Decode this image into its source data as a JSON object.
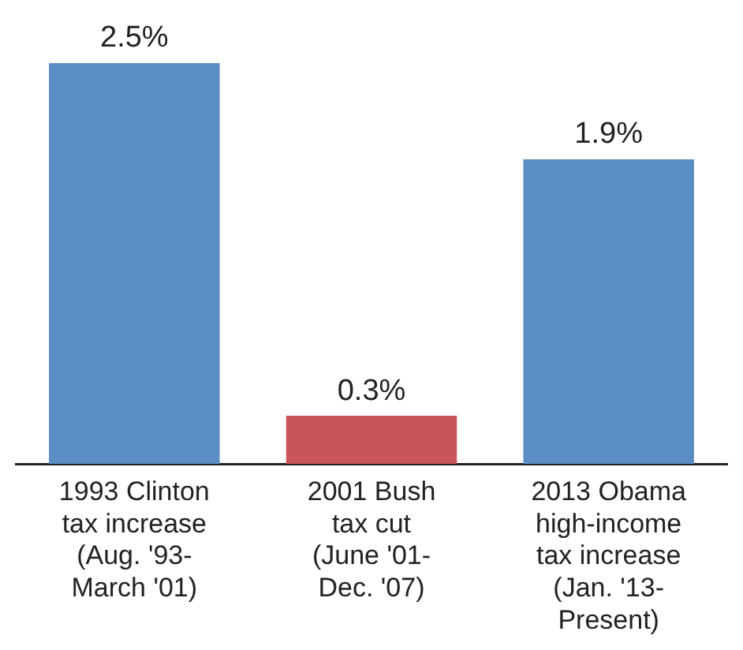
{
  "chart_data": {
    "type": "bar",
    "categories": [
      "1993 Clinton\ntax increase\n(Aug. '93-\nMarch '01)",
      "2001 Bush\ntax cut\n(June '01-\nDec. '07)",
      "2013 Obama\nhigh-income\ntax increase\n(Jan. '13-\nPresent)"
    ],
    "values": [
      2.5,
      0.3,
      1.9
    ],
    "colors": [
      "#5b8ec4",
      "#c9545c",
      "#5b8ec4"
    ],
    "value_labels": [
      "2.5%",
      "0.3%",
      "1.9%"
    ],
    "grid": false,
    "legend": false
  }
}
